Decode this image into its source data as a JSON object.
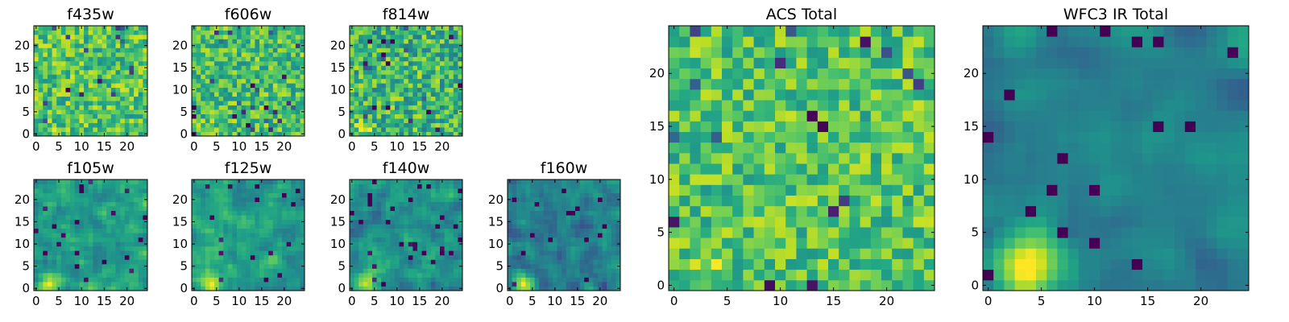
{
  "chart_data": {
    "type": "heatmap",
    "colormap": "viridis",
    "grid": false,
    "panels": [
      {
        "id": "f435w",
        "title": "f435w",
        "size": 25,
        "ticks_x": [
          0,
          5,
          10,
          15,
          20
        ],
        "ticks_y": [
          0,
          5,
          10,
          15,
          20
        ],
        "description": "noisy image, mostly green-yellow",
        "seed": 11,
        "base": 0.72,
        "noise": 0.22,
        "blob": {
          "cx": 3,
          "cy": 1,
          "r": 2,
          "amp": 0.15
        },
        "smooth": 0
      },
      {
        "id": "f606w",
        "title": "f606w",
        "size": 25,
        "ticks_x": [
          0,
          5,
          10,
          15,
          20
        ],
        "ticks_y": [
          0,
          5,
          10,
          15,
          20
        ],
        "seed": 23,
        "base": 0.7,
        "noise": 0.22,
        "blob": {
          "cx": 3,
          "cy": 1,
          "r": 2.5,
          "amp": 0.25
        },
        "smooth": 0
      },
      {
        "id": "f814w",
        "title": "f814w",
        "size": 25,
        "ticks_x": [
          0,
          5,
          10,
          15,
          20
        ],
        "ticks_y": [
          0,
          5,
          10,
          15,
          20
        ],
        "seed": 37,
        "base": 0.66,
        "noise": 0.25,
        "blob": {
          "cx": 3,
          "cy": 1,
          "r": 3,
          "amp": 0.3
        },
        "smooth": 0
      },
      {
        "id": "f105w",
        "title": "f105w",
        "size": 25,
        "ticks_x": [
          0,
          5,
          10,
          15,
          20
        ],
        "ticks_y": [
          0,
          5,
          10,
          15,
          20
        ],
        "seed": 41,
        "base": 0.58,
        "noise": 0.2,
        "blob": {
          "cx": 3,
          "cy": 1,
          "r": 4,
          "amp": 0.4
        },
        "smooth": 1
      },
      {
        "id": "f125w",
        "title": "f125w",
        "size": 25,
        "ticks_x": [
          0,
          5,
          10,
          15,
          20
        ],
        "ticks_y": [
          0,
          5,
          10,
          15,
          20
        ],
        "seed": 53,
        "base": 0.55,
        "noise": 0.2,
        "blob": {
          "cx": 4,
          "cy": 1,
          "r": 4,
          "amp": 0.45
        },
        "smooth": 1
      },
      {
        "id": "f140w",
        "title": "f140w",
        "size": 25,
        "ticks_x": [
          0,
          5,
          10,
          15,
          20
        ],
        "ticks_y": [
          0,
          5,
          10,
          15,
          20
        ],
        "seed": 67,
        "base": 0.5,
        "noise": 0.2,
        "blob": {
          "cx": 3,
          "cy": 1,
          "r": 4,
          "amp": 0.5
        },
        "smooth": 1
      },
      {
        "id": "f160w",
        "title": "f160w",
        "size": 25,
        "ticks_x": [
          0,
          5,
          10,
          15,
          20
        ],
        "ticks_y": [
          0,
          5,
          10,
          15,
          20
        ],
        "seed": 79,
        "base": 0.42,
        "noise": 0.2,
        "blob": {
          "cx": 3,
          "cy": 1,
          "r": 4,
          "amp": 0.55
        },
        "smooth": 1
      },
      {
        "id": "acs-total",
        "title": "ACS Total",
        "size": 25,
        "ticks_x": [
          0,
          5,
          10,
          15,
          20
        ],
        "ticks_y": [
          0,
          5,
          10,
          15,
          20
        ],
        "seed": 97,
        "base": 0.72,
        "noise": 0.2,
        "blob": {
          "cx": 3,
          "cy": 1,
          "r": 3,
          "amp": 0.2
        },
        "smooth": 0
      },
      {
        "id": "wfc3-ir-total",
        "title": "WFC3 IR Total",
        "size": 25,
        "ticks_x": [
          0,
          5,
          10,
          15,
          20
        ],
        "ticks_y": [
          0,
          5,
          10,
          15,
          20
        ],
        "seed": 113,
        "base": 0.45,
        "noise": 0.15,
        "blob": {
          "cx": 4,
          "cy": 2,
          "r": 5,
          "amp": 0.6
        },
        "smooth": 2
      }
    ]
  }
}
